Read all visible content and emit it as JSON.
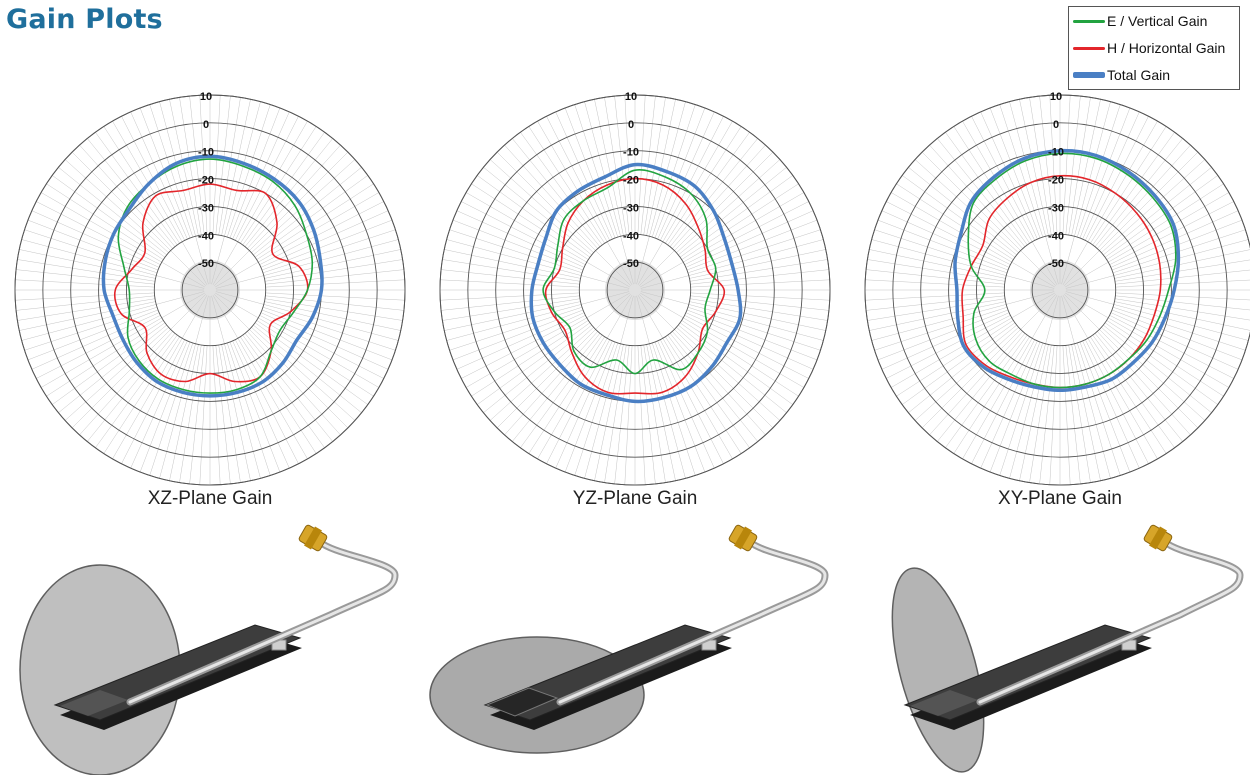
{
  "header": {
    "title": "Gain Plots"
  },
  "legend": {
    "placement": "top-right",
    "items": [
      {
        "label": "E / Vertical Gain",
        "color": "#22a340"
      },
      {
        "label": "H / Horizontal Gain",
        "color": "#e3262b"
      },
      {
        "label": "Total Gain",
        "color": "#4a7fc4"
      }
    ]
  },
  "chart_data": [
    {
      "type": "polar-line",
      "caption": "XZ-Plane Gain",
      "r_ticks": [
        10,
        0,
        -10,
        -20,
        -30,
        -40,
        -50
      ],
      "r_range": [
        -60,
        10
      ],
      "theta_unit": "deg",
      "theta": [
        0,
        15,
        30,
        45,
        60,
        75,
        90,
        105,
        120,
        135,
        150,
        165,
        180,
        195,
        210,
        225,
        240,
        255,
        270,
        285,
        300,
        315,
        330,
        345
      ],
      "series": [
        {
          "name": "E / Vertical Gain",
          "color": "#22a340",
          "values": [
            -13,
            -14,
            -15,
            -17,
            -20,
            -22,
            -25,
            -29,
            -31,
            -29,
            -24,
            -23,
            -23,
            -23,
            -23,
            -24,
            -26,
            -30,
            -31,
            -28,
            -22,
            -18,
            -16,
            -14
          ]
        },
        {
          "name": "H / Horizontal Gain",
          "color": "#e3262b",
          "values": [
            -22,
            -23,
            -20,
            -26,
            -34,
            -27,
            -25,
            -30,
            -35,
            -29,
            -24,
            -26,
            -30,
            -26,
            -25,
            -28,
            -33,
            -27,
            -26,
            -31,
            -33,
            -26,
            -21,
            -23
          ]
        },
        {
          "name": "Total Gain",
          "color": "#4a7fc4",
          "values": [
            -12,
            -13,
            -14,
            -15,
            -17,
            -19,
            -20,
            -22,
            -24,
            -23,
            -22,
            -22,
            -22,
            -22,
            -22,
            -23,
            -24,
            -24,
            -22,
            -21,
            -20,
            -19,
            -16,
            -13
          ]
        }
      ]
    },
    {
      "type": "polar-line",
      "caption": "YZ-Plane Gain",
      "r_ticks": [
        10,
        0,
        -10,
        -20,
        -30,
        -40,
        -50
      ],
      "r_range": [
        -60,
        10
      ],
      "theta_unit": "deg",
      "theta": [
        0,
        15,
        30,
        45,
        60,
        75,
        90,
        105,
        120,
        135,
        150,
        165,
        180,
        195,
        210,
        225,
        240,
        255,
        270,
        285,
        300,
        315,
        330,
        345
      ],
      "series": [
        {
          "name": "E / Vertical Gain",
          "color": "#22a340",
          "values": [
            -17,
            -18,
            -20,
            -24,
            -30,
            -30,
            -33,
            -34,
            -30,
            -28,
            -27,
            -34,
            -30,
            -34,
            -28,
            -29,
            -33,
            -30,
            -27,
            -30,
            -28,
            -24,
            -23,
            -22
          ]
        },
        {
          "name": "H / Horizontal Gain",
          "color": "#e3262b",
          "values": [
            -20,
            -21,
            -24,
            -28,
            -31,
            -33,
            -28,
            -30,
            -32,
            -28,
            -24,
            -22,
            -23,
            -22,
            -24,
            -28,
            -31,
            -29,
            -28,
            -32,
            -30,
            -26,
            -23,
            -21
          ]
        },
        {
          "name": "Total Gain",
          "color": "#4a7fc4",
          "values": [
            -15,
            -16,
            -17,
            -20,
            -23,
            -24,
            -23,
            -21,
            -22,
            -21,
            -20,
            -20,
            -20,
            -21,
            -21,
            -22,
            -22,
            -22,
            -23,
            -24,
            -23,
            -20,
            -19,
            -18
          ]
        }
      ]
    },
    {
      "type": "polar-line",
      "caption": "XY-Plane Gain",
      "r_ticks": [
        10,
        0,
        -10,
        -20,
        -30,
        -40,
        -50
      ],
      "r_range": [
        -60,
        10
      ],
      "theta_unit": "deg",
      "theta": [
        0,
        15,
        30,
        45,
        60,
        75,
        90,
        105,
        120,
        135,
        150,
        165,
        180,
        195,
        210,
        225,
        240,
        255,
        270,
        285,
        300,
        315,
        330,
        345
      ],
      "series": [
        {
          "name": "E / Vertical Gain",
          "color": "#22a340",
          "values": [
            -11,
            -11,
            -12,
            -13,
            -14,
            -17,
            -21,
            -23,
            -24,
            -25,
            -25,
            -25,
            -25,
            -25,
            -25,
            -24,
            -25,
            -28,
            -33,
            -27,
            -22,
            -16,
            -14,
            -12
          ]
        },
        {
          "name": "H / Horizontal Gain",
          "color": "#e3262b",
          "values": [
            -19,
            -19,
            -20,
            -21,
            -22,
            -23,
            -24,
            -25,
            -25,
            -25,
            -25,
            -25,
            -25,
            -25,
            -24,
            -22,
            -21,
            -24,
            -25,
            -27,
            -28,
            -24,
            -22,
            -20
          ]
        },
        {
          "name": "Total Gain",
          "color": "#4a7fc4",
          "values": [
            -10,
            -10,
            -11,
            -12,
            -13,
            -16,
            -19,
            -21,
            -22,
            -23,
            -23,
            -24,
            -24,
            -24,
            -23,
            -21,
            -20,
            -22,
            -23,
            -21,
            -19,
            -15,
            -13,
            -11
          ]
        }
      ]
    }
  ]
}
